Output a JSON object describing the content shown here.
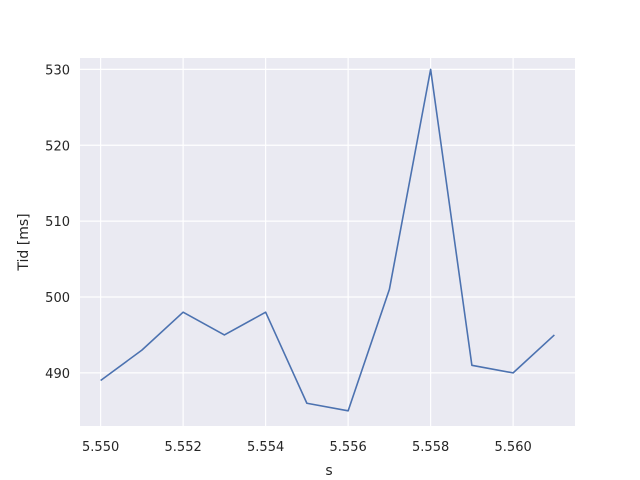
{
  "chart_data": {
    "type": "line",
    "title": "",
    "xlabel": "s",
    "ylabel": "Tid [ms]",
    "xlim": [
      5.5495,
      5.5615
    ],
    "ylim": [
      483,
      531.5
    ],
    "xticks": [
      "5.550",
      "5.552",
      "5.554",
      "5.556",
      "5.558",
      "5.560"
    ],
    "xtick_values": [
      5.55,
      5.552,
      5.554,
      5.556,
      5.558,
      5.56
    ],
    "yticks": [
      "490",
      "500",
      "510",
      "520",
      "530"
    ],
    "ytick_values": [
      490,
      500,
      510,
      520,
      530
    ],
    "grid": true,
    "series": [
      {
        "color": "#4c72b0",
        "x": [
          5.55,
          5.551,
          5.552,
          5.553,
          5.554,
          5.555,
          5.556,
          5.557,
          5.558,
          5.559,
          5.56,
          5.561
        ],
        "y": [
          489,
          493,
          498,
          495,
          498,
          486,
          485,
          501,
          530,
          491,
          490,
          495
        ]
      }
    ],
    "colors": {
      "plot_background": "#eaeaf2",
      "grid": "#ffffff",
      "text": "#262626"
    }
  }
}
